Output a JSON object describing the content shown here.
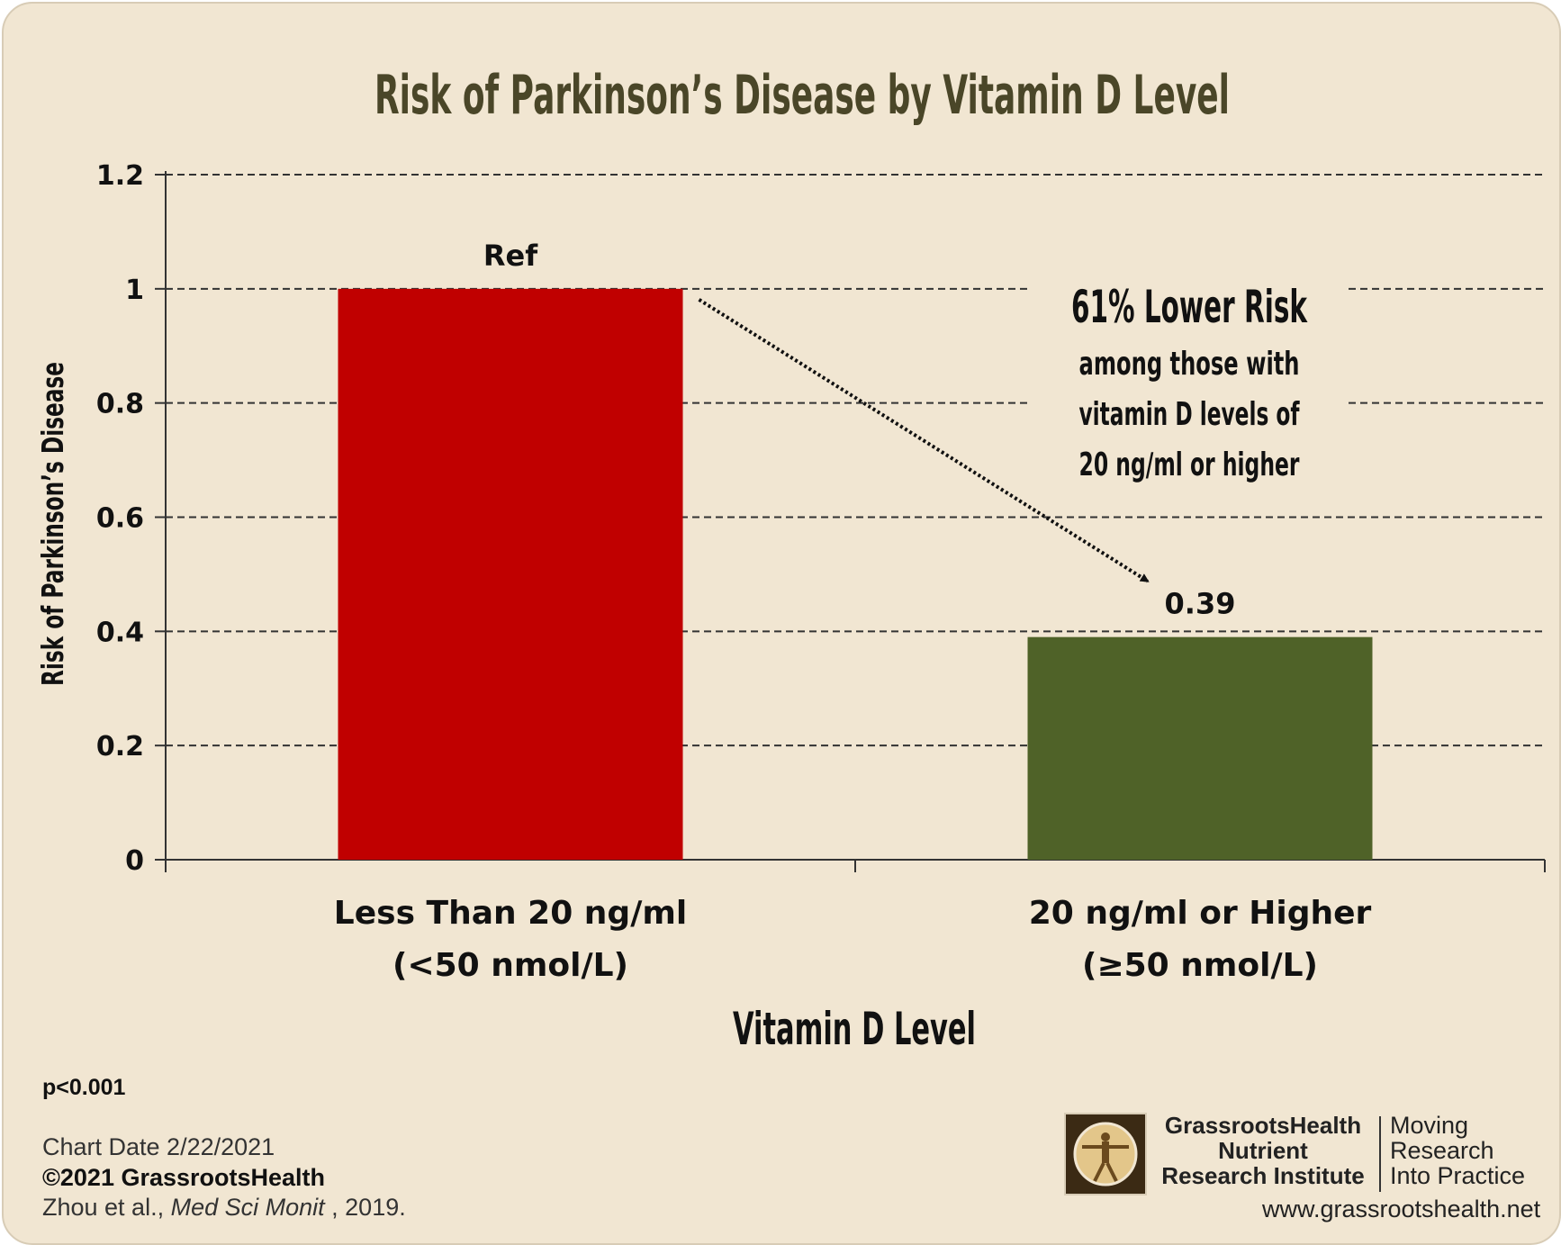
{
  "chart_data": {
    "type": "bar",
    "title": "Risk of Parkinson’s Disease by Vitamin D Level",
    "xlabel": "Vitamin D Level",
    "ylabel": "Risk of Parkinson’s Disease",
    "ylim": [
      0,
      1.2
    ],
    "yticks": [
      "0",
      "0.2",
      "0.4",
      "0.6",
      "0.8",
      "1",
      "1.2"
    ],
    "grid": true,
    "categories": [
      {
        "line1": "Less Than 20 ng/ml",
        "line2": "(<50 nmol/L)"
      },
      {
        "line1": "20 ng/ml or Higher",
        "line2": "(≥50 nmol/L)"
      }
    ],
    "values": [
      1.0,
      0.39
    ],
    "data_labels": [
      "Ref",
      "0.39"
    ],
    "colors": [
      "#c00000",
      "#4f6228"
    ],
    "annotation": {
      "headline": "61% Lower Risk",
      "lines": [
        "among those with",
        "vitamin D levels of",
        "20 ng/ml or higher"
      ]
    }
  },
  "footer": {
    "pvalue": "p<0.001",
    "chart_date": "Chart Date 2/22/2021",
    "copyright": "©2021 GrassrootsHealth",
    "citation_authors": "Zhou et al., ",
    "citation_journal": "Med Sci Monit",
    "citation_year": " , 2019.",
    "website": "www.grassrootshealth.net"
  },
  "logo": {
    "icon": "vitruvian-man-icon",
    "name_lines": [
      "GrassrootsHealth",
      "Nutrient",
      "Research Institute"
    ],
    "tagline_lines": [
      "Moving",
      "Research",
      "Into Practice"
    ]
  },
  "theme": {
    "background": "#f1e6d2",
    "title_color": "#4a4628",
    "text_color": "#111111"
  }
}
